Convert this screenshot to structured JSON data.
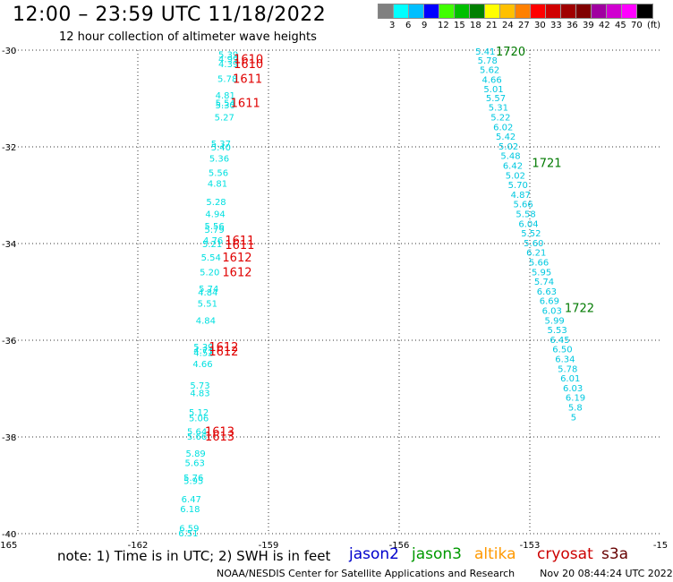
{
  "title": "12:00 – 23:59 UTC 11/18/2022",
  "subtitle": "12 hour collection of altimeter wave heights",
  "legend": {
    "colors": [
      "#808080",
      "#00ffff",
      "#00bfff",
      "#0000ff",
      "#40ff00",
      "#00c000",
      "#008000",
      "#ffff00",
      "#ffc000",
      "#ff8000",
      "#ff0000",
      "#d00000",
      "#a00000",
      "#800000",
      "#a000a0",
      "#d000d0",
      "#ff00ff",
      "#000000"
    ],
    "labels": [
      "3",
      "6",
      "9",
      "12",
      "15",
      "18",
      "21",
      "24",
      "27",
      "30",
      "33",
      "36",
      "39",
      "42",
      "45",
      "70",
      "(ft)"
    ],
    "unit": "(ft)"
  },
  "map": {
    "x_labels": [
      "-165",
      "-162",
      "-159",
      "-156",
      "-153",
      "-15"
    ],
    "y_labels": [
      "-30",
      "-32",
      "-34",
      "-36",
      "-38",
      "-40"
    ],
    "x_range": [
      -165,
      -150
    ],
    "y_range": [
      -40,
      -30
    ]
  },
  "pass1": {
    "color": "#00e0e0",
    "points": [
      {
        "lon": -160.15,
        "lat": -30.08,
        "v": "5.39"
      },
      {
        "lon": -160.15,
        "lat": -30.18,
        "v": "4.99"
      },
      {
        "lon": -160.15,
        "lat": -30.28,
        "v": "4.39"
      },
      {
        "lon": -160.17,
        "lat": -30.58,
        "v": "5.78"
      },
      {
        "lon": -160.22,
        "lat": -30.93,
        "v": "4.81"
      },
      {
        "lon": -160.22,
        "lat": -31.08,
        "v": "5.54"
      },
      {
        "lon": -160.22,
        "lat": -31.13,
        "v": "5.30"
      },
      {
        "lon": -160.24,
        "lat": -31.38,
        "v": "5.27"
      },
      {
        "lon": -160.32,
        "lat": -31.93,
        "v": "5.37"
      },
      {
        "lon": -160.32,
        "lat": -32.0,
        "v": "5.40"
      },
      {
        "lon": -160.36,
        "lat": -32.23,
        "v": "5.36"
      },
      {
        "lon": -160.38,
        "lat": -32.53,
        "v": "5.56"
      },
      {
        "lon": -160.4,
        "lat": -32.75,
        "v": "4.81"
      },
      {
        "lon": -160.43,
        "lat": -33.13,
        "v": "5.28"
      },
      {
        "lon": -160.45,
        "lat": -33.38,
        "v": "4.94"
      },
      {
        "lon": -160.47,
        "lat": -33.63,
        "v": "5.56"
      },
      {
        "lon": -160.47,
        "lat": -33.7,
        "v": "5.79"
      },
      {
        "lon": -160.5,
        "lat": -33.93,
        "v": "4.76"
      },
      {
        "lon": -160.52,
        "lat": -34.0,
        "v": "5.21"
      },
      {
        "lon": -160.55,
        "lat": -34.28,
        "v": "5.54"
      },
      {
        "lon": -160.58,
        "lat": -34.58,
        "v": "5.20"
      },
      {
        "lon": -160.6,
        "lat": -34.93,
        "v": "5.74"
      },
      {
        "lon": -160.62,
        "lat": -35.0,
        "v": "4.84"
      },
      {
        "lon": -160.63,
        "lat": -35.23,
        "v": "5.51"
      },
      {
        "lon": -160.67,
        "lat": -35.58,
        "v": "4.84"
      },
      {
        "lon": -160.72,
        "lat": -36.13,
        "v": "5.39"
      },
      {
        "lon": -160.72,
        "lat": -36.2,
        "v": "4.71"
      },
      {
        "lon": -160.72,
        "lat": -36.25,
        "v": "4.52"
      },
      {
        "lon": -160.74,
        "lat": -36.48,
        "v": "4.66"
      },
      {
        "lon": -160.8,
        "lat": -36.93,
        "v": "5.73"
      },
      {
        "lon": -160.8,
        "lat": -37.08,
        "v": "4.83"
      },
      {
        "lon": -160.83,
        "lat": -37.48,
        "v": "5.12"
      },
      {
        "lon": -160.83,
        "lat": -37.6,
        "v": "5.06"
      },
      {
        "lon": -160.87,
        "lat": -37.88,
        "v": "5.64"
      },
      {
        "lon": -160.87,
        "lat": -37.98,
        "v": "5.66"
      },
      {
        "lon": -160.9,
        "lat": -38.33,
        "v": "5.89"
      },
      {
        "lon": -160.92,
        "lat": -38.53,
        "v": "5.63"
      },
      {
        "lon": -160.95,
        "lat": -38.83,
        "v": "5.76"
      },
      {
        "lon": -160.95,
        "lat": -38.9,
        "v": "5.95"
      },
      {
        "lon": -161.0,
        "lat": -39.28,
        "v": "6.47"
      },
      {
        "lon": -161.03,
        "lat": -39.48,
        "v": "6.18"
      },
      {
        "lon": -161.05,
        "lat": -39.88,
        "v": "6.59"
      },
      {
        "lon": -161.07,
        "lat": -39.98,
        "v": "6.51"
      }
    ],
    "times": [
      {
        "lon": -159.8,
        "lat": -30.18,
        "t": "1610"
      },
      {
        "lon": -159.8,
        "lat": -30.28,
        "t": "1610"
      },
      {
        "lon": -159.82,
        "lat": -30.58,
        "t": "1611"
      },
      {
        "lon": -159.87,
        "lat": -31.08,
        "t": "1611"
      },
      {
        "lon": -160.0,
        "lat": -33.93,
        "t": "1611"
      },
      {
        "lon": -160.0,
        "lat": -34.02,
        "t": "1611"
      },
      {
        "lon": -160.06,
        "lat": -34.28,
        "t": "1612"
      },
      {
        "lon": -160.06,
        "lat": -34.58,
        "t": "1612"
      },
      {
        "lon": -160.37,
        "lat": -36.13,
        "t": "1612"
      },
      {
        "lon": -160.37,
        "lat": -36.22,
        "t": "1612"
      },
      {
        "lon": -160.46,
        "lat": -37.88,
        "t": "1613"
      },
      {
        "lon": -160.46,
        "lat": -37.98,
        "t": "1613"
      }
    ]
  },
  "pass2": {
    "color": "#00c8e0",
    "points": [
      {
        "lon": -154.25,
        "lat": -30.02,
        "v": "5.41"
      },
      {
        "lon": -154.2,
        "lat": -30.2,
        "v": "5.78"
      },
      {
        "lon": -154.15,
        "lat": -30.4,
        "v": "5.62"
      },
      {
        "lon": -154.1,
        "lat": -30.6,
        "v": "4.66"
      },
      {
        "lon": -154.06,
        "lat": -30.8,
        "v": "5.01"
      },
      {
        "lon": -154.01,
        "lat": -30.98,
        "v": "5.57"
      },
      {
        "lon": -153.95,
        "lat": -31.18,
        "v": "5.31"
      },
      {
        "lon": -153.9,
        "lat": -31.38,
        "v": "5.22"
      },
      {
        "lon": -153.84,
        "lat": -31.58,
        "v": "6.02"
      },
      {
        "lon": -153.78,
        "lat": -31.78,
        "v": "5.42"
      },
      {
        "lon": -153.72,
        "lat": -31.98,
        "v": "5.02"
      },
      {
        "lon": -153.67,
        "lat": -32.18,
        "v": "5.48"
      },
      {
        "lon": -153.62,
        "lat": -32.38,
        "v": "6.42"
      },
      {
        "lon": -153.56,
        "lat": -32.58,
        "v": "5.02"
      },
      {
        "lon": -153.5,
        "lat": -32.78,
        "v": "5.70"
      },
      {
        "lon": -153.44,
        "lat": -32.98,
        "v": "4.87"
      },
      {
        "lon": -153.38,
        "lat": -33.18,
        "v": "5.66"
      },
      {
        "lon": -153.32,
        "lat": -33.38,
        "v": "5.58"
      },
      {
        "lon": -153.26,
        "lat": -33.58,
        "v": "6.04"
      },
      {
        "lon": -153.2,
        "lat": -33.78,
        "v": "5.52"
      },
      {
        "lon": -153.14,
        "lat": -33.98,
        "v": "5.60"
      },
      {
        "lon": -153.08,
        "lat": -34.18,
        "v": "6.21"
      },
      {
        "lon": -153.02,
        "lat": -34.38,
        "v": "5.66"
      },
      {
        "lon": -152.96,
        "lat": -34.58,
        "v": "5.95"
      },
      {
        "lon": -152.9,
        "lat": -34.78,
        "v": "5.74"
      },
      {
        "lon": -152.84,
        "lat": -34.98,
        "v": "6.63"
      },
      {
        "lon": -152.78,
        "lat": -35.18,
        "v": "6.69"
      },
      {
        "lon": -152.72,
        "lat": -35.38,
        "v": "6.03"
      },
      {
        "lon": -152.66,
        "lat": -35.58,
        "v": "5.99"
      },
      {
        "lon": -152.6,
        "lat": -35.78,
        "v": "5.53"
      },
      {
        "lon": -152.54,
        "lat": -35.98,
        "v": "6.45"
      },
      {
        "lon": -152.48,
        "lat": -36.18,
        "v": "6.50"
      },
      {
        "lon": -152.42,
        "lat": -36.38,
        "v": "6.34"
      },
      {
        "lon": -152.36,
        "lat": -36.58,
        "v": "5.78"
      },
      {
        "lon": -152.3,
        "lat": -36.78,
        "v": "6.01"
      },
      {
        "lon": -152.24,
        "lat": -36.98,
        "v": "6.03"
      },
      {
        "lon": -152.18,
        "lat": -37.18,
        "v": "6.19"
      },
      {
        "lon": -152.12,
        "lat": -37.38,
        "v": "5.8"
      },
      {
        "lon": -152.06,
        "lat": -37.58,
        "v": "5"
      }
    ],
    "times": [
      {
        "lon": -153.78,
        "lat": -30.02,
        "t": "1720"
      },
      {
        "lon": -152.95,
        "lat": -32.32,
        "t": "1721"
      },
      {
        "lon": -152.2,
        "lat": -35.32,
        "t": "1722"
      }
    ]
  },
  "time_color_red": "#e00000",
  "time_color_green": "#007a00",
  "footer": {
    "note": "note:  1) Time is in UTC;  2) SWH is in feet",
    "missions": [
      {
        "name": "jason2",
        "color": "#0000cc"
      },
      {
        "name": "jason3",
        "color": "#009900"
      },
      {
        "name": "altika",
        "color": "#ff9900"
      },
      {
        "name": "cryosat",
        "color": "#cc0000"
      },
      {
        "name": "s3a",
        "color": "#660000"
      }
    ],
    "credit": "NOAA/NESDIS Center for Satellite Applications and Research",
    "timestamp": "Nov 20 08:44:24 UTC 2022"
  }
}
